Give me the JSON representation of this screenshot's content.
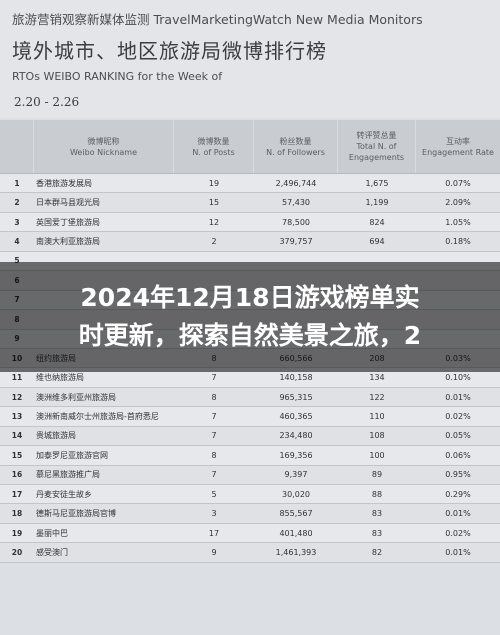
{
  "header": {
    "top_line": "旅游营销观察新媒体监测 TravelMarketingWatch New Media Monitors",
    "title": "境外城市、地区旅游局微博排行榜",
    "subtitle": "RTOs WEIBO RANKING for the Week of",
    "date_range": "2.20 - 2.26"
  },
  "table": {
    "columns": [
      {
        "zh": "微博昵称",
        "en": "Weibo Nickname"
      },
      {
        "zh": "微博数量",
        "en": "N. of Posts"
      },
      {
        "zh": "粉丝数量",
        "en": "N. of Followers"
      },
      {
        "zh": "转评赞总量",
        "en": "Total N. of Engagements"
      },
      {
        "zh": "互动率",
        "en": "Engagement Rate"
      }
    ],
    "rows": [
      {
        "rank": "1",
        "name": "香港旅游发展局",
        "posts": "19",
        "followers": "2,496,744",
        "engagements": "1,675",
        "rate": "0.07%"
      },
      {
        "rank": "2",
        "name": "日本群马县观光局",
        "posts": "15",
        "followers": "57,430",
        "engagements": "1,199",
        "rate": "2.09%"
      },
      {
        "rank": "3",
        "name": "英国爱丁堡旅游局",
        "posts": "12",
        "followers": "78,500",
        "engagements": "824",
        "rate": "1.05%"
      },
      {
        "rank": "4",
        "name": "南澳大利亚旅游局",
        "posts": "2",
        "followers": "379,757",
        "engagements": "694",
        "rate": "0.18%"
      },
      {
        "rank": "5",
        "name": "",
        "posts": "",
        "followers": "",
        "engagements": "",
        "rate": ""
      },
      {
        "rank": "6",
        "name": "",
        "posts": "",
        "followers": "",
        "engagements": "",
        "rate": ""
      },
      {
        "rank": "7",
        "name": "",
        "posts": "",
        "followers": "",
        "engagements": "",
        "rate": ""
      },
      {
        "rank": "8",
        "name": "",
        "posts": "",
        "followers": "",
        "engagements": "",
        "rate": ""
      },
      {
        "rank": "9",
        "name": "",
        "posts": "",
        "followers": "",
        "engagements": "",
        "rate": ""
      },
      {
        "rank": "10",
        "name": "纽约旅游局",
        "posts": "8",
        "followers": "660,566",
        "engagements": "208",
        "rate": "0.03%"
      },
      {
        "rank": "11",
        "name": "维也纳旅游局",
        "posts": "7",
        "followers": "140,158",
        "engagements": "134",
        "rate": "0.10%"
      },
      {
        "rank": "12",
        "name": "澳洲维多利亚州旅游局",
        "posts": "8",
        "followers": "965,315",
        "engagements": "122",
        "rate": "0.01%"
      },
      {
        "rank": "13",
        "name": "澳洲新南威尔士州旅游局-首府悉尼",
        "posts": "7",
        "followers": "460,365",
        "engagements": "110",
        "rate": "0.02%"
      },
      {
        "rank": "14",
        "name": "贵城旅游局",
        "posts": "7",
        "followers": "234,480",
        "engagements": "108",
        "rate": "0.05%"
      },
      {
        "rank": "15",
        "name": "加泰罗尼亚旅游官网",
        "posts": "8",
        "followers": "169,356",
        "engagements": "100",
        "rate": "0.06%"
      },
      {
        "rank": "16",
        "name": "慕尼黑旅游推广局",
        "posts": "7",
        "followers": "9,397",
        "engagements": "89",
        "rate": "0.95%"
      },
      {
        "rank": "17",
        "name": "丹麦安徒生故乡",
        "posts": "5",
        "followers": "30,020",
        "engagements": "88",
        "rate": "0.29%"
      },
      {
        "rank": "18",
        "name": "德斯马尼亚旅游局官博",
        "posts": "3",
        "followers": "855,567",
        "engagements": "83",
        "rate": "0.01%"
      },
      {
        "rank": "19",
        "name": "墨丽中巴",
        "posts": "17",
        "followers": "401,480",
        "engagements": "83",
        "rate": "0.02%"
      },
      {
        "rank": "20",
        "name": "感受澳门",
        "posts": "9",
        "followers": "1,461,393",
        "engagements": "82",
        "rate": "0.01%"
      }
    ]
  },
  "overlay": {
    "line1": "2024年12月18日游戏榜单实",
    "line2": "时更新，探索自然美景之旅，2"
  }
}
